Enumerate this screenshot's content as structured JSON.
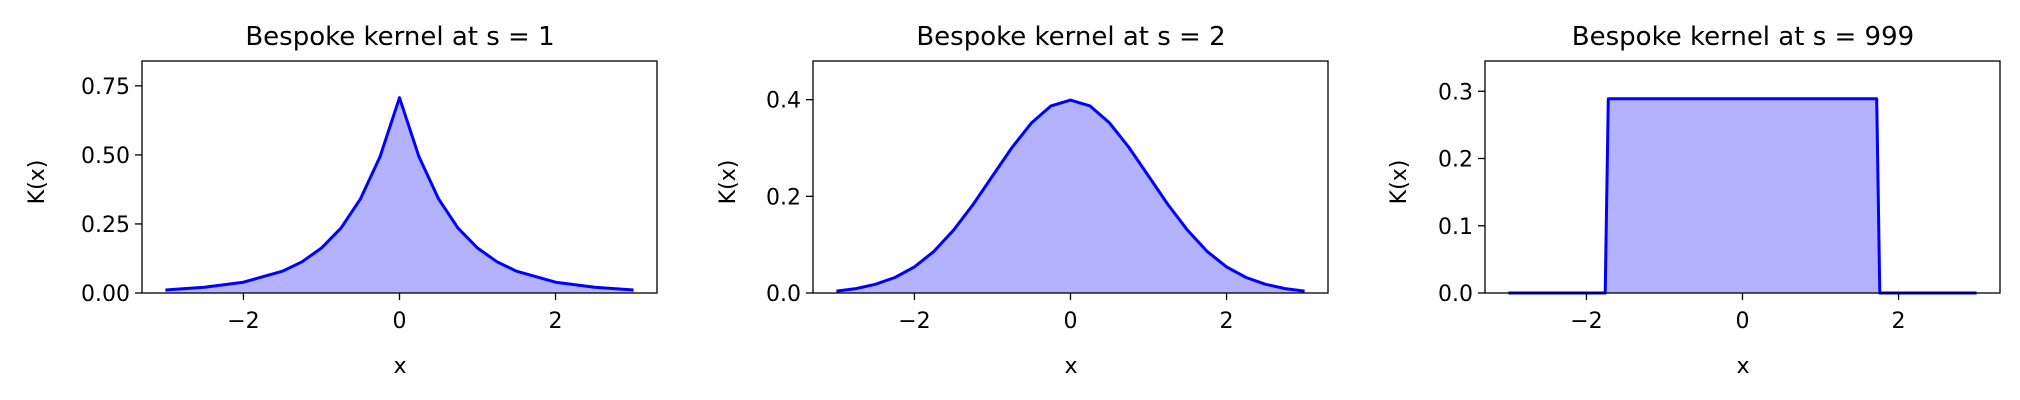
{
  "chart_data": [
    {
      "type": "area",
      "title": "Bespoke kernel at s = 1",
      "xlabel": "x",
      "ylabel": "K(x)",
      "xlim": [
        -3.3,
        3.3
      ],
      "ylim": [
        0,
        0.84
      ],
      "xticks": [
        -2,
        0,
        2
      ],
      "xtick_labels": [
        "−2",
        "0",
        "2"
      ],
      "yticks": [
        0,
        0.25,
        0.5,
        0.75
      ],
      "ytick_labels": [
        "0.00",
        "0.25",
        "0.50",
        "0.75"
      ],
      "grid": false,
      "line_color": "#0000ff",
      "fill_color": "#b2b2ff",
      "series": [
        {
          "x": [
            -3,
            -2.5,
            -2,
            -1.5,
            -1.25,
            -1,
            -0.75,
            -0.5,
            -0.25,
            0,
            0.25,
            0.5,
            0.75,
            1,
            1.25,
            1.5,
            2,
            2.5,
            3
          ],
          "values": [
            0.011,
            0.021,
            0.039,
            0.079,
            0.113,
            0.163,
            0.235,
            0.341,
            0.493,
            0.707,
            0.493,
            0.341,
            0.235,
            0.163,
            0.113,
            0.079,
            0.039,
            0.021,
            0.011
          ]
        }
      ]
    },
    {
      "type": "area",
      "title": "Bespoke kernel at s = 2",
      "xlabel": "x",
      "ylabel": "K(x)",
      "xlim": [
        -3.3,
        3.3
      ],
      "ylim": [
        0,
        0.48
      ],
      "xticks": [
        -2,
        0,
        2
      ],
      "xtick_labels": [
        "−2",
        "0",
        "2"
      ],
      "yticks": [
        0,
        0.2,
        0.4
      ],
      "ytick_labels": [
        "0.0",
        "0.2",
        "0.4"
      ],
      "grid": false,
      "line_color": "#0000ff",
      "fill_color": "#b2b2ff",
      "series": [
        {
          "x": [
            -3,
            -2.75,
            -2.5,
            -2.25,
            -2,
            -1.75,
            -1.5,
            -1.25,
            -1,
            -0.75,
            -0.5,
            -0.25,
            0,
            0.25,
            0.5,
            0.75,
            1,
            1.25,
            1.5,
            1.75,
            2,
            2.25,
            2.5,
            2.75,
            3
          ],
          "values": [
            0.004,
            0.009,
            0.018,
            0.032,
            0.054,
            0.086,
            0.13,
            0.183,
            0.242,
            0.301,
            0.352,
            0.387,
            0.399,
            0.387,
            0.352,
            0.301,
            0.242,
            0.183,
            0.13,
            0.086,
            0.054,
            0.032,
            0.018,
            0.009,
            0.004
          ]
        }
      ]
    },
    {
      "type": "area",
      "title": "Bespoke kernel at s = 999",
      "xlabel": "x",
      "ylabel": "K(x)",
      "xlim": [
        -3.3,
        3.3
      ],
      "ylim": [
        0,
        0.345
      ],
      "xticks": [
        -2,
        0,
        2
      ],
      "xtick_labels": [
        "−2",
        "0",
        "2"
      ],
      "yticks": [
        0,
        0.1,
        0.2,
        0.3
      ],
      "ytick_labels": [
        "0.0",
        "0.1",
        "0.2",
        "0.3"
      ],
      "grid": false,
      "line_color": "#0000ff",
      "fill_color": "#b2b2ff",
      "series": [
        {
          "x": [
            -3,
            -1.76,
            -1.72,
            1.72,
            1.76,
            3
          ],
          "values": [
            0,
            0,
            0.289,
            0.289,
            0,
            0
          ]
        }
      ]
    }
  ]
}
